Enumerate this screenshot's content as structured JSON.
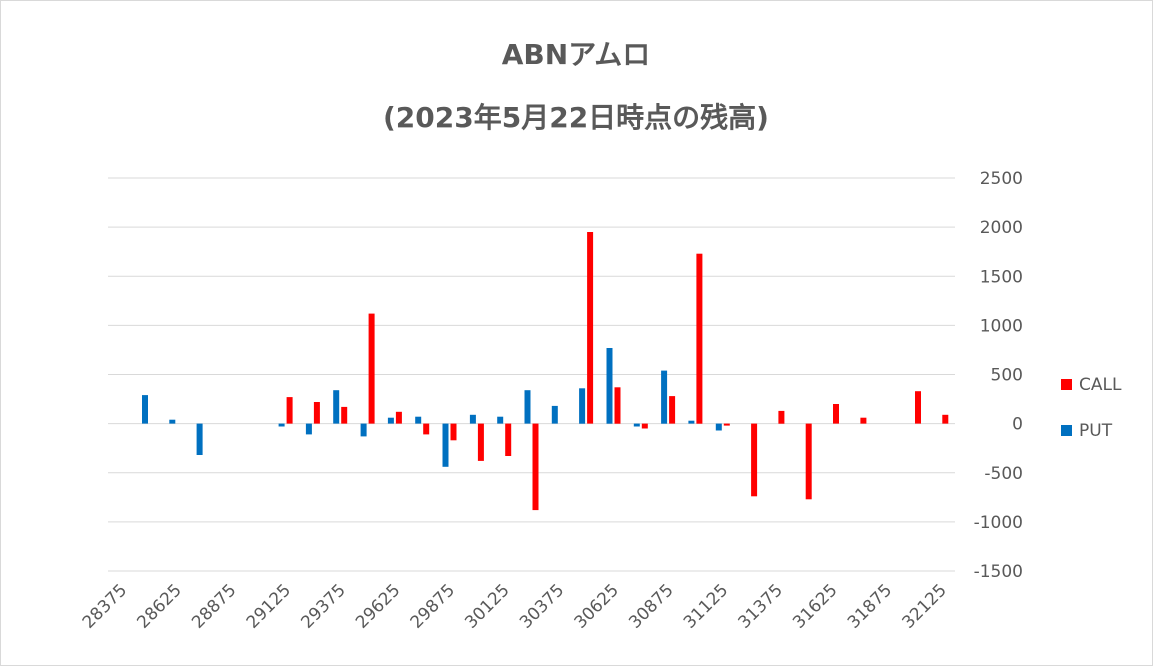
{
  "chart_data": {
    "type": "bar",
    "title": "ABNアムロ",
    "subtitle": "(2023年5月22日時点の残高)",
    "ylim": [
      -1500,
      2500
    ],
    "yticks": [
      2500,
      2000,
      1500,
      1000,
      500,
      0,
      -500,
      -1000,
      -1500
    ],
    "y_axis_position": "right",
    "grid": true,
    "legend_position": "right",
    "x_tick_labels": [
      "28375",
      "28625",
      "28875",
      "29125",
      "29375",
      "29625",
      "29875",
      "30125",
      "30375",
      "30625",
      "30875",
      "31125",
      "31375",
      "31625",
      "31875",
      "32125"
    ],
    "categories": [
      28375,
      28500,
      28625,
      28750,
      28875,
      29000,
      29125,
      29250,
      29375,
      29500,
      29625,
      29750,
      29875,
      30000,
      30125,
      30250,
      30375,
      30500,
      30625,
      30750,
      30875,
      31000,
      31125,
      31250,
      31375,
      31500,
      31625,
      31750,
      31875,
      32000,
      32125
    ],
    "series": [
      {
        "name": "CALL",
        "color": "#ff0000",
        "values": [
          0,
          0,
          0,
          0,
          0,
          0,
          270,
          220,
          170,
          1120,
          120,
          -110,
          -170,
          -380,
          -330,
          -880,
          0,
          1950,
          370,
          -50,
          280,
          1730,
          -20,
          -740,
          130,
          -770,
          200,
          60,
          0,
          330,
          90
        ]
      },
      {
        "name": "PUT",
        "color": "#0070c0",
        "values": [
          0,
          290,
          40,
          -320,
          0,
          0,
          -30,
          -110,
          340,
          -130,
          60,
          70,
          -440,
          90,
          70,
          340,
          180,
          360,
          770,
          -30,
          540,
          30,
          -70,
          0,
          0,
          0,
          0,
          0,
          0,
          0,
          0
        ]
      }
    ]
  }
}
